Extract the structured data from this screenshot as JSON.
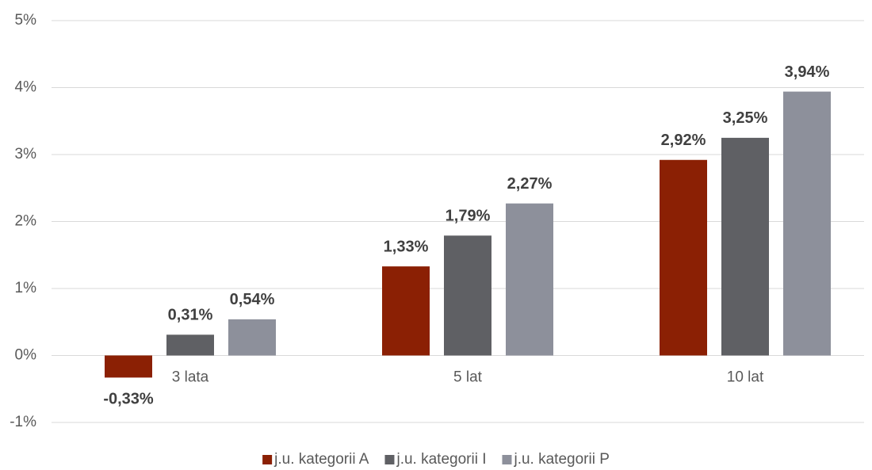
{
  "chart_data": {
    "type": "bar",
    "categories": [
      "3 lata",
      "5 lat",
      "10 lat"
    ],
    "series": [
      {
        "name": "j.u. kategorii A",
        "color": "#8b2004",
        "values": [
          -0.33,
          1.33,
          2.92
        ],
        "value_labels": [
          "-0,33%",
          "1,33%",
          "2,92%"
        ]
      },
      {
        "name": "j.u. kategorii I",
        "color": "#5f6064",
        "values": [
          0.31,
          1.79,
          3.25
        ],
        "value_labels": [
          "0,31%",
          "1,79%",
          "3,25%"
        ]
      },
      {
        "name": "j.u. kategorii P",
        "color": "#8d909b",
        "values": [
          0.54,
          2.27,
          3.94
        ],
        "value_labels": [
          "0,54%",
          "2,27%",
          "3,94%"
        ]
      }
    ],
    "ylim": [
      -1,
      5
    ],
    "yticks": [
      {
        "value": -1,
        "label": "-1%"
      },
      {
        "value": 0,
        "label": "0%"
      },
      {
        "value": 1,
        "label": "1%"
      },
      {
        "value": 2,
        "label": "2%"
      },
      {
        "value": 3,
        "label": "3%"
      },
      {
        "value": 4,
        "label": "4%"
      },
      {
        "value": 5,
        "label": "5%"
      }
    ],
    "grid": true,
    "legend": "bottom"
  }
}
